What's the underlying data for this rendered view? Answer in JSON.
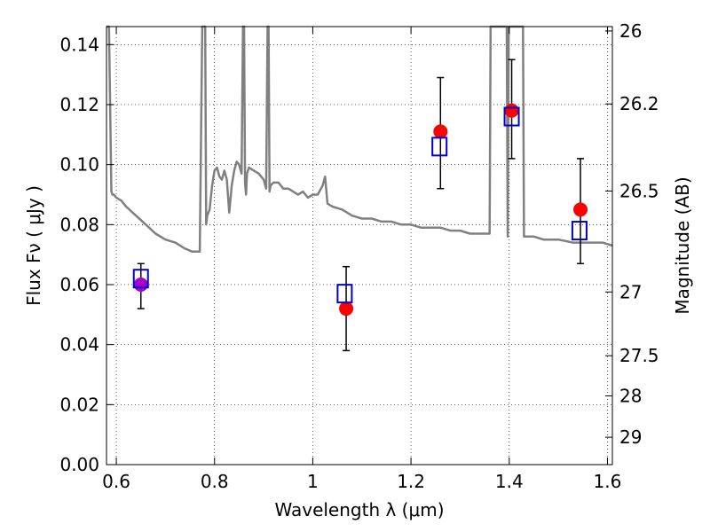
{
  "chart_data": {
    "type": "scatter",
    "xlabel": "Wavelength  λ (μm)",
    "ylabel": "Flux  Fν  ( μJy )",
    "ylabel_right": "Magnitude (AB)",
    "xlim": [
      0.58,
      1.61
    ],
    "ylim": [
      0.0,
      0.146
    ],
    "grid": true,
    "x_ticks": [
      {
        "value": 0.6,
        "label": "0.6"
      },
      {
        "value": 0.8,
        "label": "0.8"
      },
      {
        "value": 1.0,
        "label": "1"
      },
      {
        "value": 1.2,
        "label": "1.2"
      },
      {
        "value": 1.4,
        "label": "1.4"
      },
      {
        "value": 1.6,
        "label": "1.6"
      }
    ],
    "y_ticks": [
      {
        "value": 0.0,
        "label": "0.00"
      },
      {
        "value": 0.02,
        "label": "0.02"
      },
      {
        "value": 0.04,
        "label": "0.04"
      },
      {
        "value": 0.06,
        "label": "0.06"
      },
      {
        "value": 0.08,
        "label": "0.08"
      },
      {
        "value": 0.1,
        "label": "0.10"
      },
      {
        "value": 0.12,
        "label": "0.12"
      },
      {
        "value": 0.14,
        "label": "0.14"
      }
    ],
    "mag_ticks": [
      {
        "value": 26,
        "label": "26"
      },
      {
        "value": 26.2,
        "label": "26.2"
      },
      {
        "value": 26.5,
        "label": "26.5"
      },
      {
        "value": 27,
        "label": "27"
      },
      {
        "value": 27.5,
        "label": "27.5"
      },
      {
        "value": 28,
        "label": "28"
      },
      {
        "value": 29,
        "label": "29"
      }
    ],
    "template_sed": {
      "color": "#808080",
      "x": [
        0.58,
        0.585,
        0.59,
        0.592,
        0.595,
        0.6,
        0.61,
        0.62,
        0.64,
        0.66,
        0.68,
        0.7,
        0.72,
        0.74,
        0.755,
        0.77,
        0.775,
        0.777,
        0.779,
        0.781,
        0.783,
        0.785,
        0.79,
        0.795,
        0.8,
        0.805,
        0.81,
        0.815,
        0.82,
        0.825,
        0.83,
        0.835,
        0.84,
        0.845,
        0.85,
        0.855,
        0.858,
        0.86,
        0.862,
        0.864,
        0.866,
        0.87,
        0.88,
        0.89,
        0.9,
        0.905,
        0.908,
        0.91,
        0.912,
        0.914,
        0.92,
        0.93,
        0.94,
        0.95,
        0.96,
        0.97,
        0.98,
        0.99,
        1.0,
        1.01,
        1.02,
        1.025,
        1.03,
        1.04,
        1.06,
        1.08,
        1.1,
        1.12,
        1.14,
        1.16,
        1.18,
        1.2,
        1.22,
        1.24,
        1.26,
        1.28,
        1.3,
        1.32,
        1.34,
        1.36,
        1.362,
        1.364,
        1.366,
        1.368,
        1.38,
        1.39,
        1.395,
        1.397,
        1.399,
        1.401,
        1.403,
        1.405,
        1.41,
        1.42,
        1.425,
        1.428,
        1.43,
        1.45,
        1.47,
        1.5,
        1.53,
        1.56,
        1.59,
        1.61
      ],
      "y": [
        0.146,
        0.146,
        0.091,
        0.09,
        0.09,
        0.089,
        0.088,
        0.086,
        0.083,
        0.08,
        0.077,
        0.075,
        0.074,
        0.072,
        0.071,
        0.071,
        0.146,
        0.146,
        0.146,
        0.146,
        0.08,
        0.083,
        0.085,
        0.093,
        0.098,
        0.099,
        0.096,
        0.095,
        0.098,
        0.095,
        0.084,
        0.093,
        0.098,
        0.101,
        0.1,
        0.097,
        0.146,
        0.146,
        0.094,
        0.09,
        0.097,
        0.099,
        0.098,
        0.097,
        0.095,
        0.092,
        0.146,
        0.146,
        0.091,
        0.093,
        0.094,
        0.094,
        0.092,
        0.092,
        0.091,
        0.09,
        0.091,
        0.089,
        0.09,
        0.09,
        0.093,
        0.096,
        0.087,
        0.086,
        0.085,
        0.083,
        0.082,
        0.082,
        0.081,
        0.081,
        0.08,
        0.08,
        0.079,
        0.079,
        0.079,
        0.078,
        0.078,
        0.077,
        0.077,
        0.077,
        0.146,
        0.146,
        0.146,
        0.146,
        0.146,
        0.146,
        0.146,
        0.076,
        0.146,
        0.146,
        0.146,
        0.146,
        0.146,
        0.146,
        0.146,
        0.146,
        0.076,
        0.076,
        0.075,
        0.075,
        0.074,
        0.074,
        0.074,
        0.073
      ]
    },
    "series": [
      {
        "name": "",
        "marker": "circle",
        "color": "#ff0000",
        "points": [
          {
            "x": 1.068,
            "y": 0.052,
            "yerr_low": 0.038,
            "yerr_high": 0.066
          },
          {
            "x": 1.26,
            "y": 0.111,
            "yerr_low": 0.092,
            "yerr_high": 0.129
          },
          {
            "x": 1.405,
            "y": 0.118,
            "yerr_low": 0.102,
            "yerr_high": 0.135
          },
          {
            "x": 1.545,
            "y": 0.085,
            "yerr_low": 0.067,
            "yerr_high": 0.102
          }
        ]
      },
      {
        "name": "",
        "marker": "circle",
        "color": "#aa00cc",
        "points": [
          {
            "x": 0.65,
            "y": 0.06,
            "yerr_low": 0.052,
            "yerr_high": 0.067
          }
        ]
      },
      {
        "name": "",
        "marker": "square-open",
        "color": "#0000cc",
        "points": [
          {
            "x": 0.65,
            "y": 0.062
          },
          {
            "x": 1.065,
            "y": 0.057
          },
          {
            "x": 1.258,
            "y": 0.106
          },
          {
            "x": 1.405,
            "y": 0.116
          },
          {
            "x": 1.543,
            "y": 0.078
          }
        ]
      }
    ]
  }
}
